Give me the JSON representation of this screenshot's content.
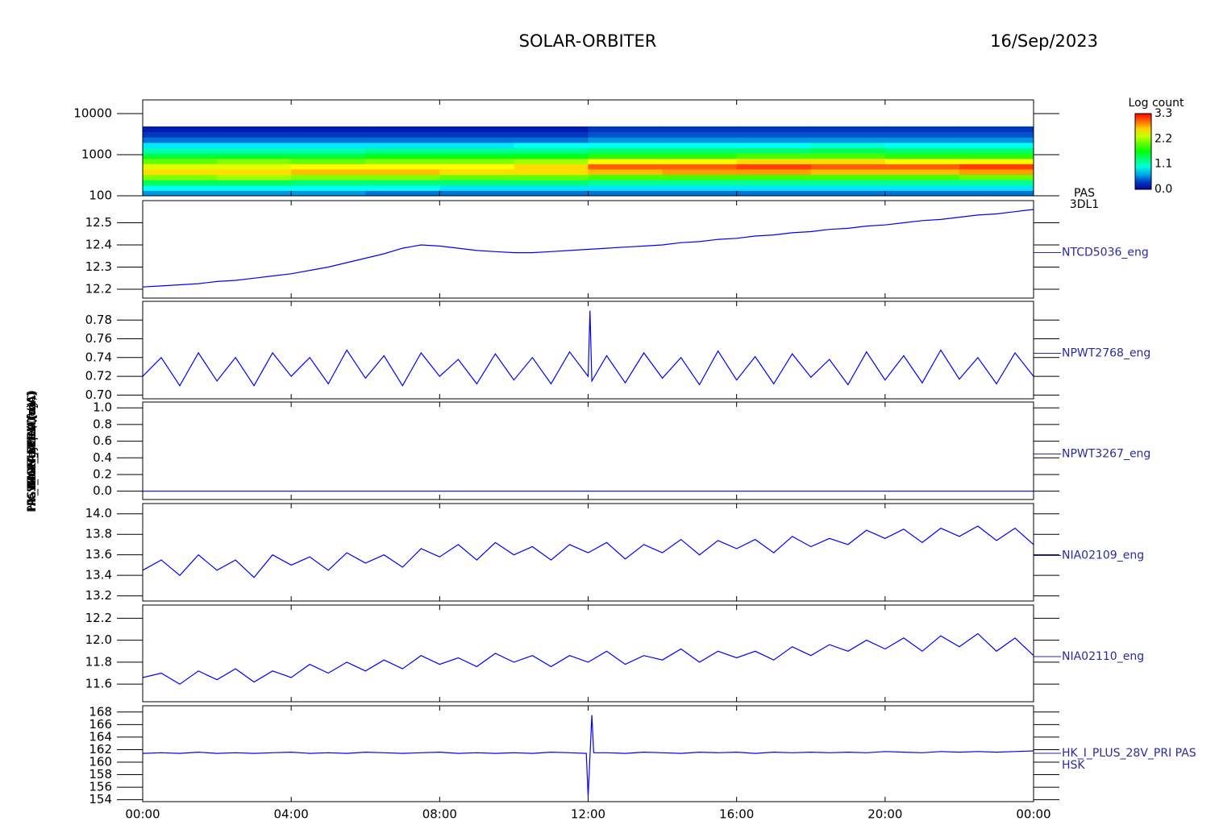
{
  "title": "SOLAR-ORBITER",
  "date": "16/Sep/2023",
  "time_axis": {
    "xlim": [
      0,
      24
    ],
    "xticks": [
      {
        "value": 0,
        "label": "00:00"
      },
      {
        "value": 4,
        "label": "04:00"
      },
      {
        "value": 8,
        "label": "08:00"
      },
      {
        "value": 12,
        "label": "12:00"
      },
      {
        "value": 16,
        "label": "16:00"
      },
      {
        "value": 20,
        "label": "20:00"
      },
      {
        "value": 24,
        "label": "00:00"
      }
    ]
  },
  "chart_data": [
    {
      "type": "heatmap",
      "ylabel": "Energy (eV)",
      "instrument": "PAS",
      "product": "3DL1",
      "log_y": true,
      "ylim": [
        100,
        21500
      ],
      "yticks": [
        100,
        1000,
        10000
      ],
      "x_edges": [
        0,
        2,
        4,
        6,
        8,
        10,
        12,
        14,
        16,
        18,
        20,
        22,
        24
      ],
      "y_edges": [
        100,
        135,
        180,
        245,
        330,
        445,
        600,
        810,
        1090,
        1470,
        1980,
        2670,
        3600,
        4860
      ],
      "z": [
        [
          0.6,
          0.9,
          1.4,
          2.1,
          2.6,
          2.4,
          2.0,
          1.5,
          1.1,
          0.8,
          0.5,
          0.3,
          0.2
        ],
        [
          0.6,
          0.9,
          1.4,
          2.2,
          2.6,
          2.4,
          2.1,
          1.5,
          1.1,
          0.8,
          0.5,
          0.3,
          0.2
        ],
        [
          0.6,
          0.9,
          1.3,
          2.1,
          2.7,
          2.5,
          2.0,
          1.5,
          1.1,
          0.8,
          0.5,
          0.3,
          0.2
        ],
        [
          0.5,
          0.9,
          1.3,
          2.1,
          2.7,
          2.5,
          2.1,
          1.6,
          1.2,
          0.8,
          0.5,
          0.3,
          0.2
        ],
        [
          0.5,
          0.8,
          1.3,
          2.0,
          2.6,
          2.5,
          2.1,
          1.6,
          1.2,
          0.8,
          0.5,
          0.3,
          0.2
        ],
        [
          0.5,
          0.8,
          1.3,
          2.0,
          2.6,
          2.6,
          2.2,
          1.6,
          1.2,
          0.9,
          0.5,
          0.3,
          0.2
        ],
        [
          0.5,
          0.8,
          1.2,
          1.9,
          2.7,
          3.0,
          2.5,
          1.8,
          1.3,
          0.9,
          0.6,
          0.4,
          0.3
        ],
        [
          0.5,
          0.8,
          1.2,
          1.9,
          2.8,
          3.0,
          2.5,
          1.8,
          1.3,
          0.9,
          0.6,
          0.4,
          0.3
        ],
        [
          0.5,
          0.8,
          1.2,
          1.9,
          2.8,
          3.1,
          2.6,
          1.9,
          1.3,
          0.9,
          0.6,
          0.4,
          0.3
        ],
        [
          0.5,
          0.8,
          1.2,
          1.9,
          2.7,
          3.0,
          2.6,
          1.9,
          1.4,
          1.0,
          0.6,
          0.4,
          0.3
        ],
        [
          0.5,
          0.8,
          1.2,
          1.9,
          2.7,
          3.0,
          2.5,
          1.8,
          1.3,
          0.9,
          0.6,
          0.4,
          0.3
        ],
        [
          0.5,
          0.8,
          1.2,
          2.0,
          2.8,
          3.1,
          2.5,
          1.8,
          1.3,
          0.9,
          0.6,
          0.4,
          0.3
        ]
      ],
      "colorbar": {
        "label": "Log count",
        "lim": [
          0,
          3.3
        ],
        "ticks": [
          {
            "value": 0,
            "label": "0.0"
          },
          1.1,
          2.2,
          3.3
        ]
      }
    },
    {
      "type": "line",
      "ylabel": "PAS Box Temp (DegC)",
      "ylim": [
        12.16,
        12.6
      ],
      "yticks": [
        12.2,
        12.3,
        12.4,
        12.5
      ],
      "x": [
        0,
        0.5,
        1,
        1.5,
        2,
        2.5,
        3,
        3.5,
        4,
        4.5,
        5,
        5.5,
        6,
        6.5,
        7,
        7.5,
        8,
        8.5,
        9,
        9.5,
        10,
        10.5,
        11,
        11.5,
        12,
        12.5,
        13,
        13.5,
        14,
        14.5,
        15,
        15.5,
        16,
        16.5,
        17,
        17.5,
        18,
        18.5,
        19,
        19.5,
        20,
        20.5,
        21,
        21.5,
        22,
        22.5,
        23,
        23.5,
        24
      ],
      "series": [
        {
          "name": "NTCD5036_eng",
          "color": "#0000ff",
          "values": [
            12.21,
            12.215,
            12.22,
            12.225,
            12.235,
            12.24,
            12.25,
            12.26,
            12.27,
            12.285,
            12.3,
            12.32,
            12.34,
            12.36,
            12.385,
            12.4,
            12.395,
            12.385,
            12.375,
            12.37,
            12.365,
            12.365,
            12.37,
            12.375,
            12.38,
            12.385,
            12.39,
            12.395,
            12.4,
            12.41,
            12.415,
            12.425,
            12.43,
            12.44,
            12.445,
            12.455,
            12.46,
            12.47,
            12.475,
            12.485,
            12.49,
            12.5,
            12.51,
            12.515,
            12.525,
            12.535,
            12.54,
            12.55,
            12.56
          ]
        }
      ]
    },
    {
      "type": "line",
      "ylabel": "SWA-EAS1 LV (V)",
      "ylim": [
        0.696,
        0.8
      ],
      "yticks": [
        {
          "value": 0.7,
          "label": "0.70"
        },
        0.72,
        0.74,
        0.76,
        0.78
      ],
      "x": [
        0,
        0.5,
        1,
        1.5,
        2,
        2.5,
        3,
        3.5,
        4,
        4.5,
        5,
        5.5,
        6,
        6.5,
        7,
        7.5,
        8,
        8.5,
        9,
        9.5,
        10,
        10.5,
        11,
        11.5,
        12,
        12.05,
        12.1,
        12.5,
        13,
        13.5,
        14,
        14.5,
        15,
        15.5,
        16,
        16.5,
        17,
        17.5,
        18,
        18.5,
        19,
        19.5,
        20,
        20.5,
        21,
        21.5,
        22,
        22.5,
        23,
        23.5,
        24
      ],
      "series": [
        {
          "name": "NPWT2768_eng",
          "color": "#0000ff",
          "values": [
            0.72,
            0.74,
            0.71,
            0.745,
            0.715,
            0.74,
            0.71,
            0.745,
            0.72,
            0.74,
            0.712,
            0.748,
            0.718,
            0.742,
            0.71,
            0.745,
            0.72,
            0.738,
            0.712,
            0.744,
            0.716,
            0.74,
            0.712,
            0.746,
            0.72,
            0.79,
            0.715,
            0.742,
            0.713,
            0.745,
            0.718,
            0.74,
            0.711,
            0.747,
            0.716,
            0.741,
            0.712,
            0.744,
            0.719,
            0.738,
            0.711,
            0.746,
            0.716,
            0.742,
            0.713,
            0.748,
            0.717,
            0.74,
            0.712,
            0.745,
            0.72
          ]
        }
      ]
    },
    {
      "type": "line",
      "ylabel": "SWA-EAS2 LV (V)",
      "ylim": [
        -0.1,
        1.07
      ],
      "yticks": [
        {
          "value": 0,
          "label": "0.0"
        },
        0.2,
        0.4,
        0.6,
        0.8,
        {
          "value": 1,
          "label": "1.0"
        }
      ],
      "x": [
        0,
        0.5,
        1,
        1.5,
        2,
        2.5,
        3,
        3.5,
        4,
        4.5,
        5,
        5.5,
        6,
        6.5,
        7,
        7.5,
        8,
        8.5,
        9,
        9.5,
        10,
        10.5,
        11,
        11.5,
        12,
        12.5,
        13,
        13.5,
        14,
        14.5,
        15,
        15.5,
        16,
        16.5,
        17,
        17.5,
        18,
        18.5,
        19,
        19.5,
        20,
        20.5,
        21,
        21.5,
        22,
        22.5,
        23,
        23.5,
        24
      ],
      "series": [
        {
          "name": "NPWT3267_eng",
          "color": "#0000ff",
          "values": [
            0,
            0,
            0,
            0,
            0,
            0,
            0,
            0,
            0,
            0,
            0,
            0,
            0,
            0,
            0,
            0,
            0,
            0,
            0,
            0,
            0,
            0,
            0,
            0,
            0,
            0,
            0,
            0,
            0,
            0,
            0,
            0,
            0,
            0,
            0,
            0,
            0,
            0,
            0,
            0,
            0,
            0,
            0,
            0,
            0,
            0,
            0,
            0,
            0
          ]
        }
      ]
    },
    {
      "type": "line",
      "ylabel": "HK_IMON_FPGA (mA)",
      "ylim": [
        13.15,
        14.1
      ],
      "yticks": [
        13.2,
        13.4,
        13.6,
        13.8,
        {
          "value": 14,
          "label": "14.0"
        }
      ],
      "x": [
        0,
        0.5,
        1,
        1.5,
        2,
        2.5,
        3,
        3.5,
        4,
        4.5,
        5,
        5.5,
        6,
        6.5,
        7,
        7.5,
        8,
        8.5,
        9,
        9.5,
        10,
        10.5,
        11,
        11.5,
        12,
        12.5,
        13,
        13.5,
        14,
        14.5,
        15,
        15.5,
        16,
        16.5,
        17,
        17.5,
        18,
        18.5,
        19,
        19.5,
        20,
        20.5,
        21,
        21.5,
        22,
        22.5,
        23,
        23.5,
        24
      ],
      "series": [
        {
          "name": "NIA02109_eng",
          "color": "#0000ff",
          "values": [
            13.45,
            13.55,
            13.4,
            13.6,
            13.45,
            13.55,
            13.38,
            13.6,
            13.5,
            13.58,
            13.45,
            13.62,
            13.52,
            13.6,
            13.48,
            13.66,
            13.58,
            13.7,
            13.55,
            13.72,
            13.6,
            13.68,
            13.55,
            13.7,
            13.62,
            13.72,
            13.56,
            13.7,
            13.62,
            13.75,
            13.6,
            13.74,
            13.66,
            13.75,
            13.62,
            13.78,
            13.68,
            13.76,
            13.7,
            13.84,
            13.76,
            13.85,
            13.72,
            13.86,
            13.78,
            13.88,
            13.74,
            13.86,
            13.7
          ]
        }
      ]
    },
    {
      "type": "line",
      "ylabel": "HK_IMON_PERM (mA)",
      "ylim": [
        11.44,
        12.32
      ],
      "yticks": [
        11.6,
        11.8,
        {
          "value": 12,
          "label": "12.0"
        },
        12.2
      ],
      "x": [
        0,
        0.5,
        1,
        1.5,
        2,
        2.5,
        3,
        3.5,
        4,
        4.5,
        5,
        5.5,
        6,
        6.5,
        7,
        7.5,
        8,
        8.5,
        9,
        9.5,
        10,
        10.5,
        11,
        11.5,
        12,
        12.5,
        13,
        13.5,
        14,
        14.5,
        15,
        15.5,
        16,
        16.5,
        17,
        17.5,
        18,
        18.5,
        19,
        19.5,
        20,
        20.5,
        21,
        21.5,
        22,
        22.5,
        23,
        23.5,
        24
      ],
      "series": [
        {
          "name": "NIA02110_eng",
          "color": "#0000ff",
          "values": [
            11.66,
            11.7,
            11.6,
            11.72,
            11.64,
            11.74,
            11.62,
            11.72,
            11.66,
            11.78,
            11.7,
            11.8,
            11.72,
            11.82,
            11.74,
            11.86,
            11.78,
            11.84,
            11.76,
            11.88,
            11.8,
            11.86,
            11.76,
            11.86,
            11.8,
            11.9,
            11.78,
            11.86,
            11.82,
            11.92,
            11.8,
            11.9,
            11.84,
            11.9,
            11.82,
            11.94,
            11.86,
            11.96,
            11.9,
            12.0,
            11.92,
            12.02,
            11.9,
            12.04,
            11.94,
            12.06,
            11.9,
            12.02,
            11.86
          ]
        }
      ]
    },
    {
      "type": "line",
      "ylabel": "PAS_HK_IMON (mA)",
      "ylim": [
        153.7,
        169
      ],
      "yticks": [
        154,
        156,
        158,
        160,
        162,
        164,
        166,
        168
      ],
      "x": [
        0,
        0.5,
        1,
        1.5,
        2,
        2.5,
        3,
        3.5,
        4,
        4.5,
        5,
        5.5,
        6,
        6.5,
        7,
        7.5,
        8,
        8.5,
        9,
        9.5,
        10,
        10.5,
        11,
        11.5,
        11.95,
        12,
        12.1,
        12.15,
        12.5,
        13,
        13.5,
        14,
        14.5,
        15,
        15.5,
        16,
        16.5,
        17,
        17.5,
        18,
        18.5,
        19,
        19.5,
        20,
        20.5,
        21,
        21.5,
        22,
        22.5,
        23,
        23.5,
        24
      ],
      "series": [
        {
          "name": "HK_I_PLUS_28V_PRI PAS",
          "subname": "HSK",
          "color": "#0000ff",
          "values": [
            161.4,
            161.5,
            161.4,
            161.6,
            161.4,
            161.5,
            161.4,
            161.5,
            161.6,
            161.4,
            161.5,
            161.4,
            161.6,
            161.5,
            161.4,
            161.5,
            161.6,
            161.4,
            161.5,
            161.4,
            161.5,
            161.4,
            161.6,
            161.5,
            161.4,
            154.5,
            167.5,
            161.5,
            161.5,
            161.4,
            161.6,
            161.5,
            161.4,
            161.6,
            161.5,
            161.6,
            161.4,
            161.6,
            161.5,
            161.6,
            161.5,
            161.6,
            161.5,
            161.7,
            161.6,
            161.5,
            161.7,
            161.6,
            161.7,
            161.6,
            161.7,
            161.8
          ]
        }
      ]
    }
  ]
}
